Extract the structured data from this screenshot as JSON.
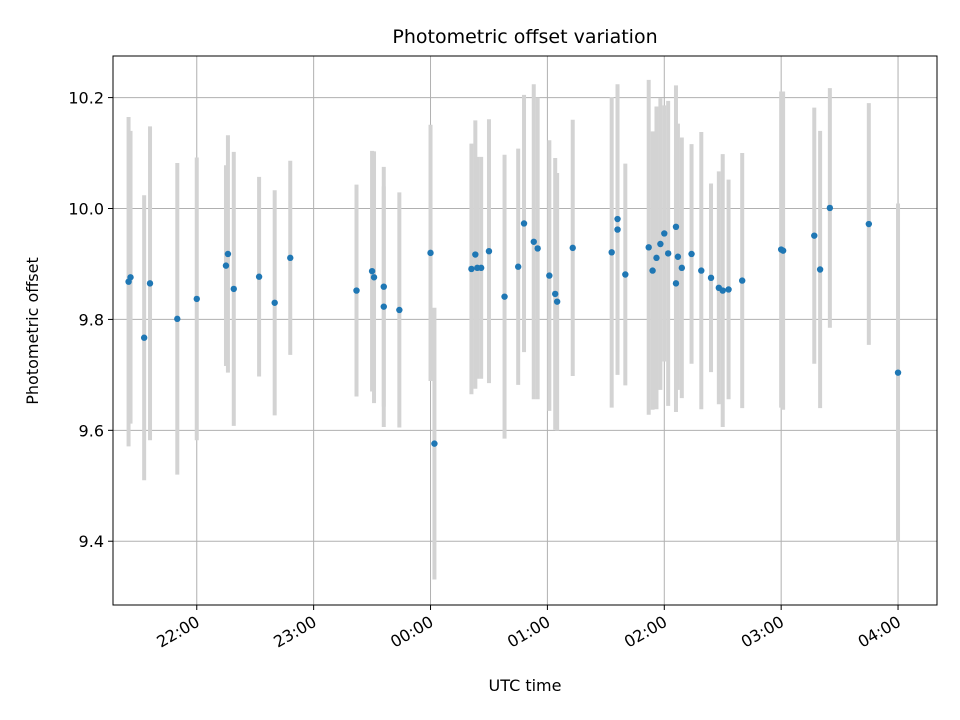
{
  "chart_data": {
    "type": "scatter",
    "title": "Photometric offset variation",
    "xlabel": "UTC time",
    "ylabel": "Photometric offset",
    "x_tick_labels": [
      "22:00",
      "23:00",
      "00:00",
      "01:00",
      "02:00",
      "03:00",
      "04:00"
    ],
    "y_ticks": [
      9.4,
      9.6,
      9.8,
      10.0,
      10.2
    ],
    "xlim": [
      "21:17",
      "04:20"
    ],
    "ylim": [
      9.285,
      10.275
    ],
    "grid": true,
    "colors": {
      "points": "#1f77b4",
      "errorbars": "#d3d3d3",
      "grid": "#b0b0b0"
    },
    "series": [
      {
        "x": [
          "21:25",
          "21:26",
          "21:33",
          "21:36",
          "21:50",
          "22:00",
          "22:15",
          "22:16",
          "22:19",
          "22:32",
          "22:40",
          "22:48",
          "23:22",
          "23:30",
          "23:31",
          "23:36",
          "23:36",
          "23:44",
          "00:00",
          "00:02",
          "00:21",
          "00:23",
          "00:24",
          "00:26",
          "00:30",
          "00:38",
          "00:45",
          "00:48",
          "00:53",
          "00:55",
          "01:01",
          "01:04",
          "01:05",
          "01:13",
          "01:33",
          "01:36",
          "01:36",
          "01:40",
          "01:52",
          "01:54",
          "01:56",
          "01:58",
          "02:00",
          "02:02",
          "02:06",
          "02:06",
          "02:07",
          "02:09",
          "02:14",
          "02:19",
          "02:24",
          "02:28",
          "02:30",
          "02:33",
          "02:40",
          "03:00",
          "03:01",
          "03:17",
          "03:20",
          "03:25",
          "03:45",
          "04:00"
        ],
        "y": [
          9.868,
          9.876,
          9.767,
          9.865,
          9.801,
          9.837,
          9.897,
          9.918,
          9.855,
          9.877,
          9.83,
          9.911,
          9.852,
          9.887,
          9.876,
          9.823,
          9.859,
          9.817,
          9.92,
          9.576,
          9.891,
          9.917,
          9.893,
          9.893,
          9.923,
          9.841,
          9.895,
          9.973,
          9.94,
          9.928,
          9.879,
          9.846,
          9.832,
          9.929,
          9.921,
          9.981,
          9.962,
          9.881,
          9.93,
          9.888,
          9.911,
          9.936,
          9.955,
          9.919,
          9.865,
          9.967,
          9.913,
          9.893,
          9.918,
          9.888,
          9.875,
          9.857,
          9.852,
          9.854,
          9.87,
          9.926,
          9.924,
          9.951,
          9.89,
          10.001,
          9.972,
          9.704
        ],
        "yerr": [
          0.297,
          0.264,
          0.257,
          0.283,
          0.281,
          0.255,
          0.181,
          0.214,
          0.247,
          0.18,
          0.203,
          0.175,
          0.191,
          0.217,
          0.227,
          0.217,
          0.216,
          0.212,
          0.231,
          0.245,
          0.226,
          0.242,
          0.2,
          0.2,
          0.238,
          0.256,
          0.213,
          0.232,
          0.284,
          0.272,
          0.244,
          0.245,
          0.232,
          0.231,
          0.28,
          0.241,
          0.262,
          0.2,
          0.302,
          0.251,
          0.273,
          0.263,
          0.231,
          0.275,
          0.232,
          0.255,
          0.24,
          0.235,
          0.198,
          0.25,
          0.17,
          0.21,
          0.246,
          0.198,
          0.23,
          0.285,
          0.287,
          0.231,
          0.25,
          0.216,
          0.218,
          0.305
        ]
      }
    ]
  }
}
